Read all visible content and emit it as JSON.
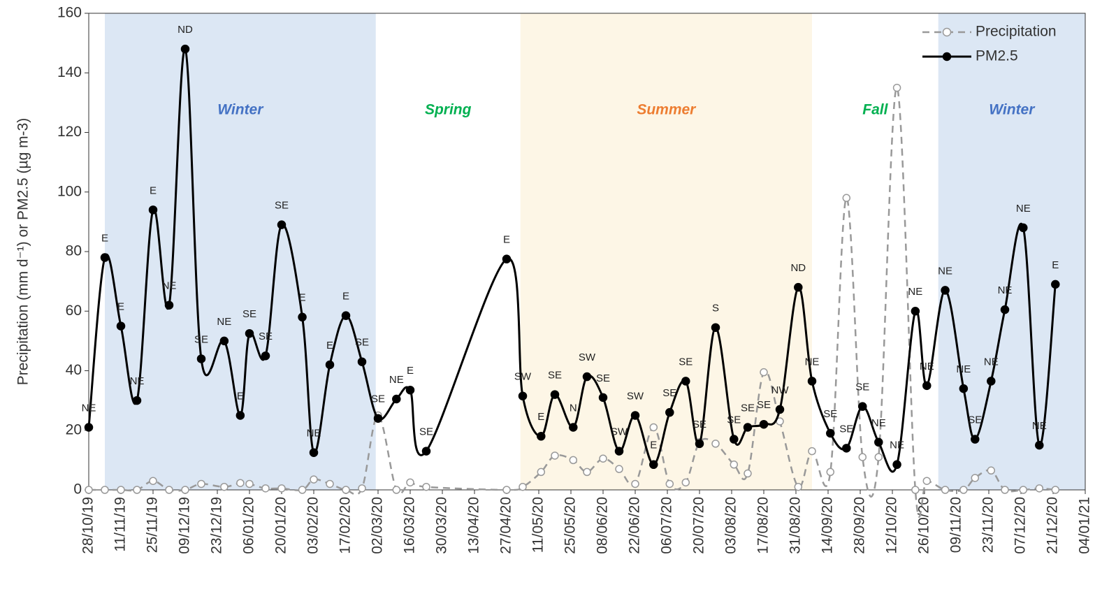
{
  "chart_data": {
    "type": "line",
    "y_label": "Precipitation (mm d⁻¹) or PM2.5 (µg m-3)",
    "xlim": [
      "2019-10-28",
      "2021-01-04"
    ],
    "xticks": [
      {
        "value": "2019-10-28",
        "label": "28/10/19"
      },
      {
        "value": "2019-11-11",
        "label": "11/11/19"
      },
      {
        "value": "2019-11-25",
        "label": "25/11/19"
      },
      {
        "value": "2019-12-09",
        "label": "09/12/19"
      },
      {
        "value": "2019-12-23",
        "label": "23/12/19"
      },
      {
        "value": "2020-01-06",
        "label": "06/01/20"
      },
      {
        "value": "2020-01-20",
        "label": "20/01/20"
      },
      {
        "value": "2020-02-03",
        "label": "03/02/20"
      },
      {
        "value": "2020-02-17",
        "label": "17/02/20"
      },
      {
        "value": "2020-03-02",
        "label": "02/03/20"
      },
      {
        "value": "2020-03-16",
        "label": "16/03/20"
      },
      {
        "value": "2020-03-30",
        "label": "30/03/20"
      },
      {
        "value": "2020-04-13",
        "label": "13/04/20"
      },
      {
        "value": "2020-04-27",
        "label": "27/04/20"
      },
      {
        "value": "2020-05-11",
        "label": "11/05/20"
      },
      {
        "value": "2020-05-25",
        "label": "25/05/20"
      },
      {
        "value": "2020-06-08",
        "label": "08/06/20"
      },
      {
        "value": "2020-06-22",
        "label": "22/06/20"
      },
      {
        "value": "2020-07-06",
        "label": "06/07/20"
      },
      {
        "value": "2020-07-20",
        "label": "20/07/20"
      },
      {
        "value": "2020-08-03",
        "label": "03/08/20"
      },
      {
        "value": "2020-08-17",
        "label": "17/08/20"
      },
      {
        "value": "2020-08-31",
        "label": "31/08/20"
      },
      {
        "value": "2020-09-14",
        "label": "14/09/20"
      },
      {
        "value": "2020-09-28",
        "label": "28/09/20"
      },
      {
        "value": "2020-10-12",
        "label": "12/10/20"
      },
      {
        "value": "2020-10-26",
        "label": "26/10/20"
      },
      {
        "value": "2020-11-09",
        "label": "09/11/20"
      },
      {
        "value": "2020-11-23",
        "label": "23/11/20"
      },
      {
        "value": "2020-12-07",
        "label": "07/12/20"
      },
      {
        "value": "2020-12-21",
        "label": "21/12/20"
      },
      {
        "value": "2021-01-04",
        "label": "04/01/21"
      }
    ],
    "ylim": [
      0,
      160
    ],
    "yticks": [
      0,
      20,
      40,
      60,
      80,
      100,
      120,
      140,
      160
    ],
    "legend": "top-right",
    "bands": [
      {
        "label": "Winter",
        "start": "2019-11-04",
        "end": "2020-03-01",
        "label_color": "#4472c4",
        "fill": "#dce7f4"
      },
      {
        "label": "Spring",
        "start": "2020-03-01",
        "end": "2020-05-03",
        "label_color": "#00b050"
      },
      {
        "label": "Summer",
        "start": "2020-05-03",
        "end": "2020-09-07",
        "label_color": "#ed7d31",
        "fill": "#fdf6e6"
      },
      {
        "label": "Fall",
        "start": "2020-09-07",
        "end": "2020-11-01",
        "label_color": "#00b050"
      },
      {
        "label": "Winter",
        "start": "2020-11-01",
        "end": "2021-01-04",
        "label_color": "#4472c4",
        "fill": "#dce7f4"
      }
    ],
    "x": [
      "2019-10-28",
      "2019-11-04",
      "2019-11-11",
      "2019-11-18",
      "2019-11-25",
      "2019-12-02",
      "2019-12-09",
      "2019-12-16",
      "2019-12-26",
      "2020-01-02",
      "2020-01-06",
      "2020-01-13",
      "2020-01-20",
      "2020-01-29",
      "2020-02-03",
      "2020-02-10",
      "2020-02-17",
      "2020-02-24",
      "2020-03-02",
      "2020-03-10",
      "2020-03-16",
      "2020-03-23",
      "2020-04-27",
      "2020-05-04",
      "2020-05-12",
      "2020-05-18",
      "2020-05-26",
      "2020-06-01",
      "2020-06-08",
      "2020-06-15",
      "2020-06-22",
      "2020-06-30",
      "2020-07-07",
      "2020-07-14",
      "2020-07-20",
      "2020-07-27",
      "2020-08-04",
      "2020-08-10",
      "2020-08-17",
      "2020-08-24",
      "2020-09-01",
      "2020-09-07",
      "2020-09-15",
      "2020-09-22",
      "2020-09-29",
      "2020-10-06",
      "2020-10-14",
      "2020-10-22",
      "2020-10-27",
      "2020-11-04",
      "2020-11-12",
      "2020-11-17",
      "2020-11-24",
      "2020-11-30",
      "2020-12-08",
      "2020-12-15",
      "2020-12-22"
    ],
    "series": [
      {
        "name": "Precipitation",
        "color": "#999999",
        "dashed": true,
        "values": [
          0,
          0,
          0,
          0,
          3,
          0,
          0,
          2,
          1,
          2.3,
          2,
          0.5,
          0.5,
          0,
          3.5,
          2,
          0,
          0.5,
          25,
          0,
          2.5,
          1,
          0,
          1,
          6,
          11.5,
          10,
          6,
          10.5,
          7,
          2,
          21,
          2,
          2.5,
          16,
          15.5,
          8.5,
          5.5,
          39.5,
          23,
          1,
          13,
          6,
          98,
          11,
          11,
          135,
          0,
          3,
          0,
          0,
          4,
          6.5,
          0,
          0,
          0.5,
          0
        ]
      },
      {
        "name": "PM2.5",
        "color": "#000000",
        "values": [
          21,
          78,
          55,
          30,
          94,
          62,
          148,
          44,
          50,
          25,
          52.5,
          45,
          89,
          58,
          12.5,
          42,
          58.5,
          43,
          24,
          30.5,
          33.5,
          13,
          77.5,
          31.5,
          18,
          32,
          21,
          38,
          31,
          13,
          25,
          8.5,
          26,
          36.5,
          15.5,
          54.5,
          17,
          21,
          22,
          27,
          68,
          36.5,
          19,
          14,
          28,
          16,
          8.5,
          60,
          35,
          67,
          34,
          17,
          36.5,
          60.5,
          88,
          15,
          69
        ],
        "point_labels": [
          "NE",
          "E",
          "E",
          "NE",
          "E",
          "NE",
          "ND",
          "SE",
          "NE",
          "E",
          "SE",
          "SE",
          "SE",
          "E",
          "NE",
          "E",
          "E",
          "SE",
          "SE",
          "NE",
          "E",
          "SE",
          "E",
          "SW",
          "E",
          "SE",
          "N",
          "SW",
          "SE",
          "SW",
          "SW",
          "E",
          "SE",
          "SE",
          "SE",
          "S",
          "SE",
          "SE",
          "SE",
          "NW",
          "ND",
          "NE",
          "SE",
          "SE",
          "SE",
          "NE",
          "NE",
          "NE",
          "NE",
          "NE",
          "NE",
          "SE",
          "NE",
          "NE",
          "NE",
          "NE",
          "E"
        ]
      }
    ]
  }
}
